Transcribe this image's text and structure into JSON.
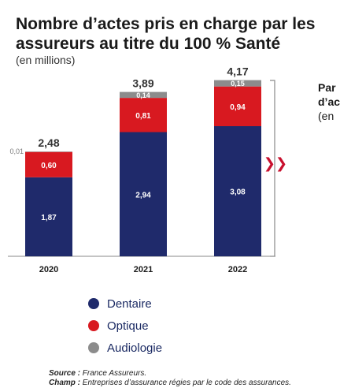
{
  "title": "Nombre d’actes pris en charge par les\nassureurs au titre du 100 % Santé",
  "subtitle": "(en millions)",
  "side_text": {
    "line1": "Par",
    "line2": "d’ac",
    "line3": "(en"
  },
  "arrow_glyph": "❯❯",
  "footer": {
    "source_label": "Source :",
    "source_text": "France Assureurs.",
    "champ_label": "Champ :",
    "champ_text": "Entreprises d’assurance régies par le code des assurances."
  },
  "colors": {
    "dentaire": "#1f2a6b",
    "optique": "#d81920",
    "audiologie": "#8c8c8c",
    "arrow": "#c8102e",
    "axis": "#8a8a8a"
  },
  "chart_data": {
    "type": "bar",
    "stacked": true,
    "categories": [
      "2020",
      "2021",
      "2022"
    ],
    "series": [
      {
        "name": "Dentaire",
        "values": [
          1.87,
          2.94,
          3.08
        ],
        "labels": [
          "1,87",
          "2,94",
          "3,08"
        ]
      },
      {
        "name": "Optique",
        "values": [
          0.6,
          0.81,
          0.94
        ],
        "labels": [
          "0,60",
          "0,81",
          "0,94"
        ]
      },
      {
        "name": "Audiologie",
        "values": [
          0.01,
          0.14,
          0.15
        ],
        "labels": [
          "0,01",
          "0,14",
          "0,15"
        ]
      }
    ],
    "totals": [
      2.48,
      3.89,
      4.17
    ],
    "total_labels": [
      "2,48",
      "3,89",
      "4,17"
    ],
    "ylim": [
      0,
      4.2
    ],
    "grid": false,
    "legend": "bottom"
  }
}
